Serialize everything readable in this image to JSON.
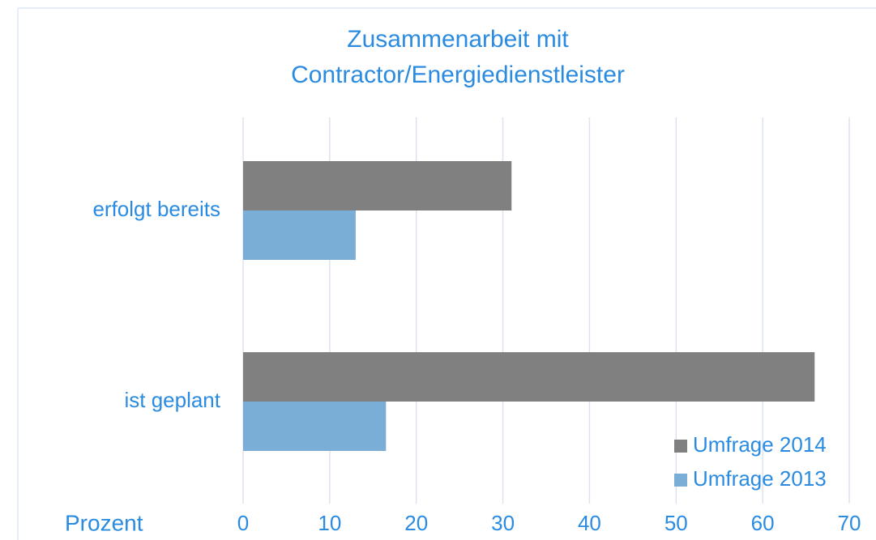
{
  "chart_data": {
    "type": "barh",
    "title": [
      "Zusammenarbeit mit",
      "Contractor/Energiedienstleister"
    ],
    "xlabel": "Prozent",
    "categories": [
      "erfolgt bereits",
      "ist geplant"
    ],
    "series": [
      {
        "name": "Umfrage 2014",
        "color": "#808080",
        "values": [
          31,
          66
        ]
      },
      {
        "name": "Umfrage 2013",
        "color": "#7aaed6",
        "values": [
          13,
          16.5
        ]
      }
    ],
    "xlim": [
      0,
      70
    ],
    "xticks": [
      0,
      10,
      20,
      30,
      40,
      50,
      60,
      70
    ],
    "grid": true,
    "legend": "lower right"
  }
}
